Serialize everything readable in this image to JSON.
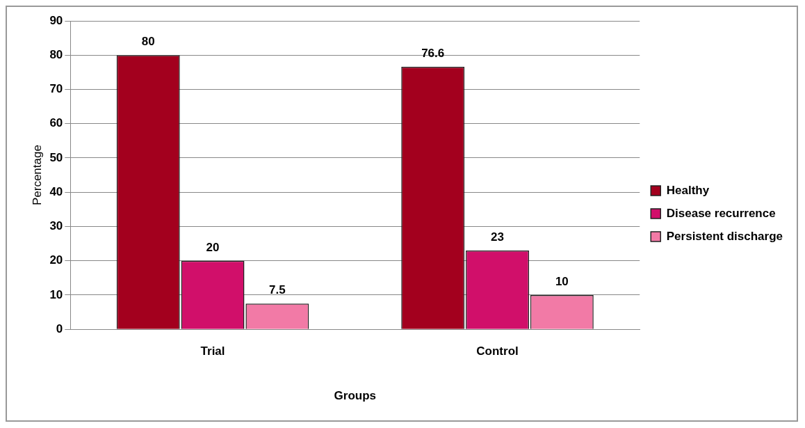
{
  "chart_data": {
    "type": "bar",
    "xlabel": "Groups",
    "ylabel": "Percentage",
    "categories": [
      "Trial",
      "Control"
    ],
    "series": [
      {
        "name": "Healthy",
        "color": "#a3001e",
        "values": [
          80,
          76.6
        ]
      },
      {
        "name": "Disease recurrence",
        "color": "#d10f6a",
        "values": [
          20,
          23
        ]
      },
      {
        "name": "Persistent discharge",
        "color": "#f27aa6",
        "values": [
          7.5,
          10
        ]
      }
    ],
    "ylim": [
      0,
      90
    ],
    "yticks": [
      0,
      10,
      20,
      30,
      40,
      50,
      60,
      70,
      80,
      90
    ],
    "grid": "y",
    "legend": "right",
    "data_labels": true
  }
}
